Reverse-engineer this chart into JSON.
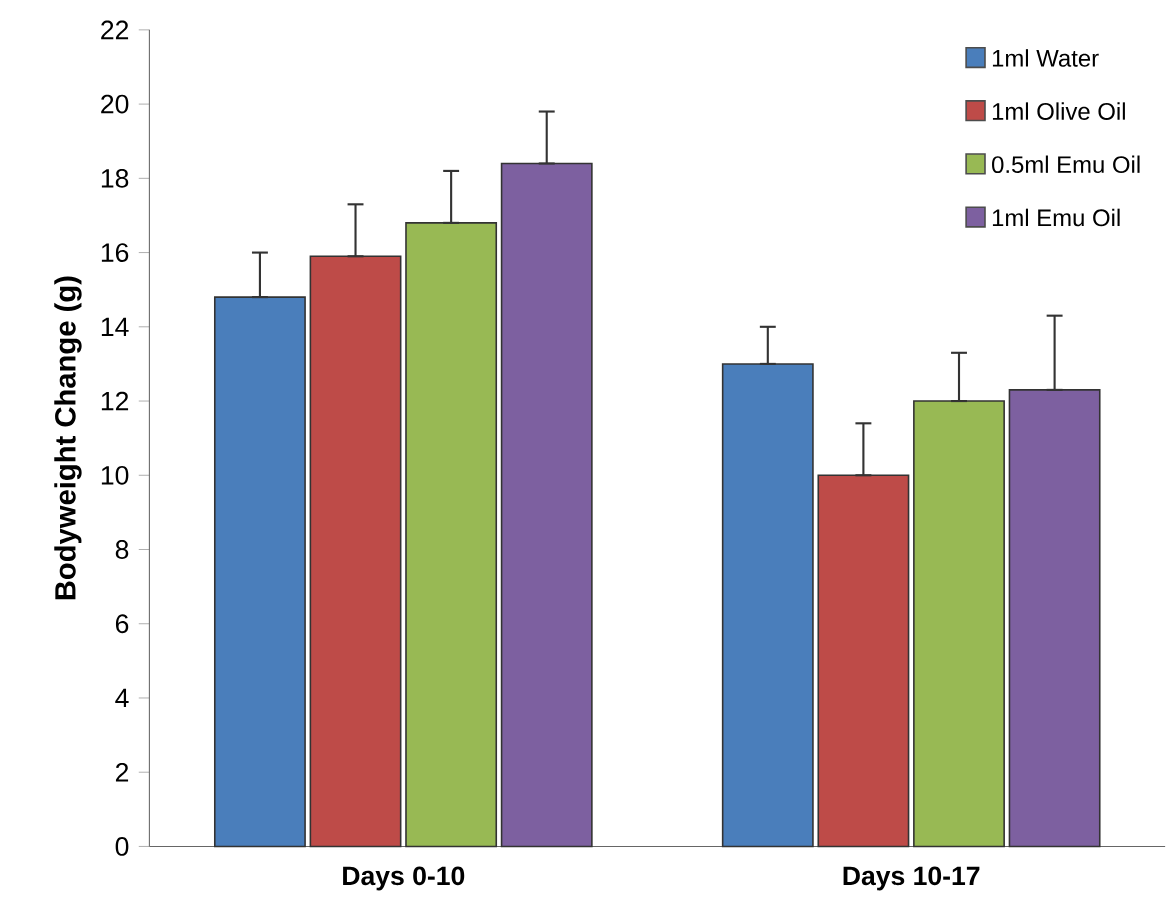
{
  "chart_data": {
    "type": "bar",
    "ylabel": "Bodyweight Change (g)",
    "categories": [
      "Days 0-10",
      "Days 10-17"
    ],
    "series": [
      {
        "name": "1ml Water",
        "color": "#4a7ebb",
        "values": [
          14.8,
          13.0
        ],
        "errors": [
          [
            14.8,
            16.0
          ],
          [
            13.0,
            14.0
          ]
        ]
      },
      {
        "name": "1ml Olive Oil",
        "color": "#be4b48",
        "values": [
          15.9,
          10.0
        ],
        "errors": [
          [
            15.9,
            17.3
          ],
          [
            10.0,
            11.4
          ]
        ]
      },
      {
        "name": "0.5ml Emu Oil",
        "color": "#98b954",
        "values": [
          16.8,
          12.0
        ],
        "errors": [
          [
            16.8,
            18.2
          ],
          [
            12.0,
            13.3
          ]
        ]
      },
      {
        "name": "1ml Emu Oil",
        "color": "#7d60a0",
        "values": [
          18.4,
          12.3
        ],
        "errors": [
          [
            18.4,
            19.8
          ],
          [
            12.3,
            14.3
          ]
        ]
      }
    ],
    "ylim": [
      0,
      22
    ],
    "yticks": [
      0,
      2,
      4,
      6,
      8,
      10,
      12,
      14,
      16,
      18,
      20,
      22
    ],
    "grid": false,
    "legend": "top right"
  }
}
